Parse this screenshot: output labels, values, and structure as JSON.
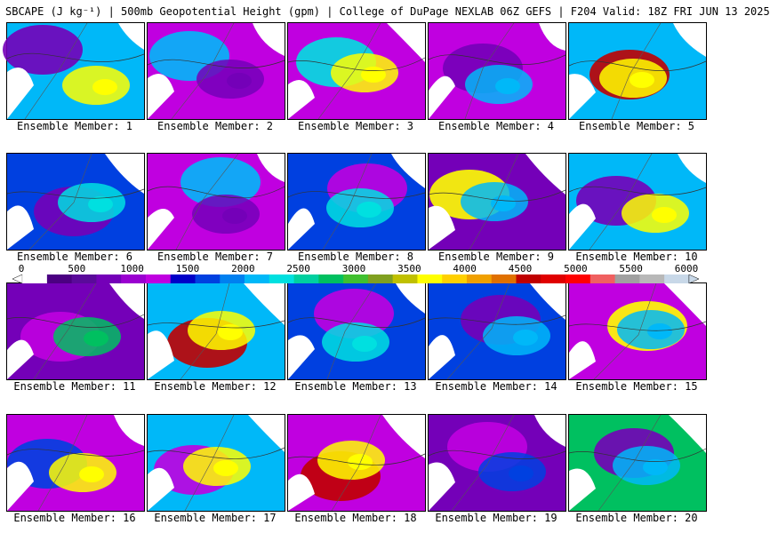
{
  "header": {
    "title": "SBCAPE (J kg⁻¹) | 500mb Geopotential Height (gpm) | College of DuPage NEXLAB 06Z GEFS | F204 Valid: 18Z FRI JUN 13 2025"
  },
  "colorbar": {
    "ticks": [
      "0",
      "500",
      "1000",
      "1500",
      "2000",
      "2500",
      "3000",
      "3500",
      "4000",
      "4500",
      "5000",
      "5500",
      "6000"
    ],
    "colors": [
      "#ffffff",
      "#4b0082",
      "#5a0a9a",
      "#7400b8",
      "#9a00d0",
      "#c000e0",
      "#0000c8",
      "#0040e0",
      "#0080f0",
      "#00b8f8",
      "#00e0e0",
      "#00d0a0",
      "#00c060",
      "#40c030",
      "#80a020",
      "#c0c000",
      "#ffff00",
      "#ffd000",
      "#f0a000",
      "#e07000",
      "#c00000",
      "#e00000",
      "#ff0000",
      "#f06060",
      "#a0a0a0",
      "#b8b8b8",
      "#c8d8e8"
    ]
  },
  "panels": [
    {
      "label": "Ensemble Member: 1"
    },
    {
      "label": "Ensemble Member: 2"
    },
    {
      "label": "Ensemble Member: 3"
    },
    {
      "label": "Ensemble Member: 4"
    },
    {
      "label": "Ensemble Member: 5"
    },
    {
      "label": "Ensemble Member: 6"
    },
    {
      "label": "Ensemble Member: 7"
    },
    {
      "label": "Ensemble Member: 8"
    },
    {
      "label": "Ensemble Member: 9"
    },
    {
      "label": "Ensemble Member: 10"
    },
    {
      "label": "Ensemble Member: 11"
    },
    {
      "label": "Ensemble Member: 12"
    },
    {
      "label": "Ensemble Member: 13"
    },
    {
      "label": "Ensemble Member: 14"
    },
    {
      "label": "Ensemble Member: 15"
    },
    {
      "label": "Ensemble Member: 16"
    },
    {
      "label": "Ensemble Member: 17"
    },
    {
      "label": "Ensemble Member: 18"
    },
    {
      "label": "Ensemble Member: 19"
    },
    {
      "label": "Ensemble Member: 20"
    }
  ]
}
